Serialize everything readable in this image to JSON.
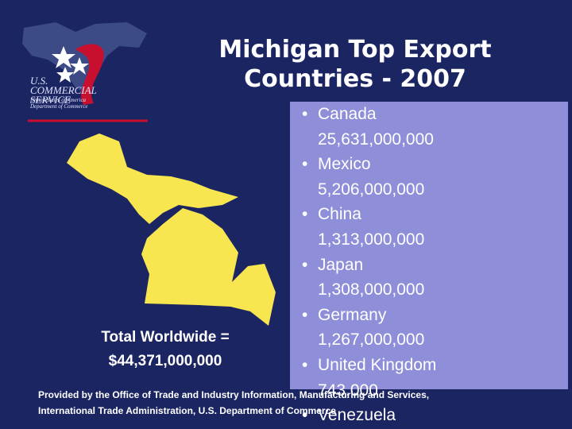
{
  "title": [
    "Michigan Top Export",
    "Countries - 2007"
  ],
  "logo": {
    "name": "U.S. COMMERCIAL SERVICE",
    "subtitle": "United States of America Department of Commerce"
  },
  "items": [
    {
      "name": "Canada",
      "value": "25,631,000,000"
    },
    {
      "name": "Mexico",
      "value": "5,206,000,000"
    },
    {
      "name": "China",
      "value": "1,313,000,000"
    },
    {
      "name": "Japan",
      "value": "1,308,000,000"
    },
    {
      "name": "Germany",
      "value": "1,267,000,000"
    },
    {
      "name": "United Kingdom",
      "value": "743,000"
    },
    {
      "name": "Venezuela"
    }
  ],
  "total": {
    "label": "Total Worldwide =",
    "value": "$44,371,000,000"
  },
  "source": [
    "Provided by the Office of Trade and Industry Information, Manufacturing and Services,",
    "International Trade Administration, U.S. Department of Commerce"
  ]
}
